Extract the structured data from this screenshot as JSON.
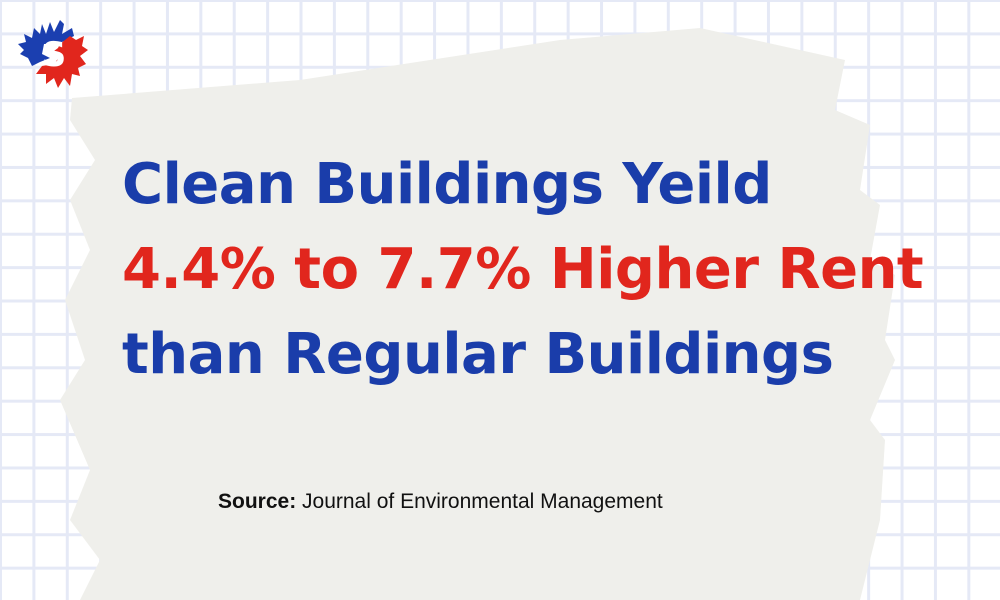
{
  "headline": {
    "line1": "Clean Buildings Yeild",
    "line2": "4.4% to 7.7% Higher Rent",
    "line3": "than Regular Buildings"
  },
  "source": {
    "label": "Source:",
    "text": " Journal of Environmental Management"
  },
  "logo": {
    "letter": "S"
  },
  "colors": {
    "blue": "#1a3daa",
    "red": "#e1261d",
    "brush": "#efefeb",
    "grid": "#e5e9f6"
  }
}
